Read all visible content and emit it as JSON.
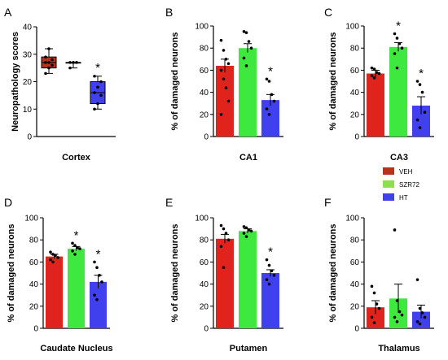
{
  "colors": {
    "veh": "#e0241d",
    "szr72": "#3fe83f",
    "ht": "#4040ee",
    "axis": "#000000"
  },
  "legend": {
    "entries": [
      {
        "label": "VEH",
        "color": "#b5321c"
      },
      {
        "label": "SZR72",
        "color": "#8ee04a"
      },
      {
        "label": "HT",
        "color": "#4040ee"
      }
    ]
  },
  "chart_data": [
    {
      "panel": "A",
      "type": "box",
      "title": "Cortex",
      "ylabel": "Neuropathology scores",
      "ylim": [
        0,
        40
      ],
      "yticks": [
        0,
        10,
        20,
        30,
        40
      ],
      "significance": "*",
      "series": [
        {
          "name": "VEH",
          "whisker_low": 23,
          "q1": 25,
          "median": 27,
          "q3": 29,
          "whisker_high": 32,
          "points": [
            23,
            25,
            26,
            27,
            27,
            28,
            29,
            32
          ]
        },
        {
          "name": "SZR72",
          "whisker_low": 25,
          "q1": 27,
          "median": 27,
          "q3": 27,
          "whisker_high": 27,
          "points": [
            25,
            27,
            27,
            27,
            27,
            27
          ]
        },
        {
          "name": "HT",
          "whisker_low": 10,
          "q1": 12,
          "median": 16,
          "q3": 20,
          "whisker_high": 22,
          "points": [
            10,
            12,
            15,
            16,
            18,
            20,
            22
          ]
        }
      ]
    },
    {
      "panel": "B",
      "type": "bar",
      "title": "CA1",
      "ylabel": "% of damaged neurons",
      "ylim": [
        0,
        100
      ],
      "yticks": [
        0,
        20,
        40,
        60,
        80,
        100
      ],
      "significance": "*",
      "series": [
        {
          "name": "VEH",
          "mean": 64,
          "sem": 6,
          "points": [
            87,
            78,
            70,
            66,
            60,
            52,
            44,
            32,
            20
          ]
        },
        {
          "name": "SZR72",
          "mean": 80,
          "sem": 4,
          "points": [
            95,
            94,
            86,
            80,
            71,
            64
          ]
        },
        {
          "name": "HT",
          "mean": 33,
          "sem": 5,
          "points": [
            52,
            50,
            38,
            32,
            25,
            20
          ]
        }
      ]
    },
    {
      "panel": "C",
      "type": "bar",
      "title": "CA3",
      "ylabel": "% of damaged neurons",
      "ylim": [
        0,
        100
      ],
      "yticks": [
        0,
        20,
        40,
        60,
        80,
        100
      ],
      "significance": "*",
      "series": [
        {
          "name": "VEH",
          "mean": 57,
          "sem": 3,
          "points": [
            62,
            61,
            58,
            57,
            55,
            53
          ]
        },
        {
          "name": "SZR72",
          "mean": 81,
          "sem": 4,
          "points": [
            93,
            89,
            84,
            80,
            75,
            62
          ]
        },
        {
          "name": "HT",
          "mean": 28,
          "sem": 8,
          "points": [
            50,
            47,
            40,
            22,
            15,
            8
          ]
        }
      ]
    },
    {
      "panel": "D",
      "type": "bar",
      "title": "Caudate Nucleus",
      "ylabel": "% of damaged neurons",
      "ylim": [
        0,
        100
      ],
      "yticks": [
        0,
        20,
        40,
        60,
        80,
        100
      ],
      "significance": "*",
      "series": [
        {
          "name": "VEH",
          "mean": 65,
          "sem": 2,
          "points": [
            69,
            67,
            66,
            64,
            62,
            60
          ]
        },
        {
          "name": "SZR72",
          "mean": 72,
          "sem": 2,
          "points": [
            77,
            75,
            73,
            72,
            70,
            67
          ]
        },
        {
          "name": "HT",
          "mean": 42,
          "sem": 6,
          "points": [
            60,
            55,
            48,
            42,
            30,
            26
          ]
        }
      ]
    },
    {
      "panel": "E",
      "type": "bar",
      "title": "Putamen",
      "ylabel": "% of damaged neurons",
      "ylim": [
        0,
        100
      ],
      "yticks": [
        0,
        20,
        40,
        60,
        80,
        100
      ],
      "significance": "*",
      "series": [
        {
          "name": "VEH",
          "mean": 81,
          "sem": 4,
          "points": [
            93,
            90,
            86,
            80,
            74,
            55
          ]
        },
        {
          "name": "SZR72",
          "mean": 88,
          "sem": 2,
          "points": [
            92,
            91,
            89,
            88,
            86,
            83
          ]
        },
        {
          "name": "HT",
          "mean": 50,
          "sem": 3,
          "points": [
            62,
            57,
            52,
            48,
            44,
            40
          ]
        }
      ]
    },
    {
      "panel": "F",
      "type": "bar",
      "title": "Thalamus",
      "ylabel": "% of damaged neurons",
      "ylim": [
        0,
        100
      ],
      "yticks": [
        0,
        20,
        40,
        60,
        80,
        100
      ],
      "significance": "",
      "series": [
        {
          "name": "VEH",
          "mean": 19,
          "sem": 6,
          "points": [
            38,
            32,
            22,
            18,
            10,
            5
          ]
        },
        {
          "name": "SZR72",
          "mean": 27,
          "sem": 13,
          "points": [
            89,
            25,
            15,
            12,
            10,
            6
          ]
        },
        {
          "name": "HT",
          "mean": 15,
          "sem": 6,
          "points": [
            44,
            18,
            14,
            10,
            6,
            4
          ]
        }
      ]
    }
  ]
}
